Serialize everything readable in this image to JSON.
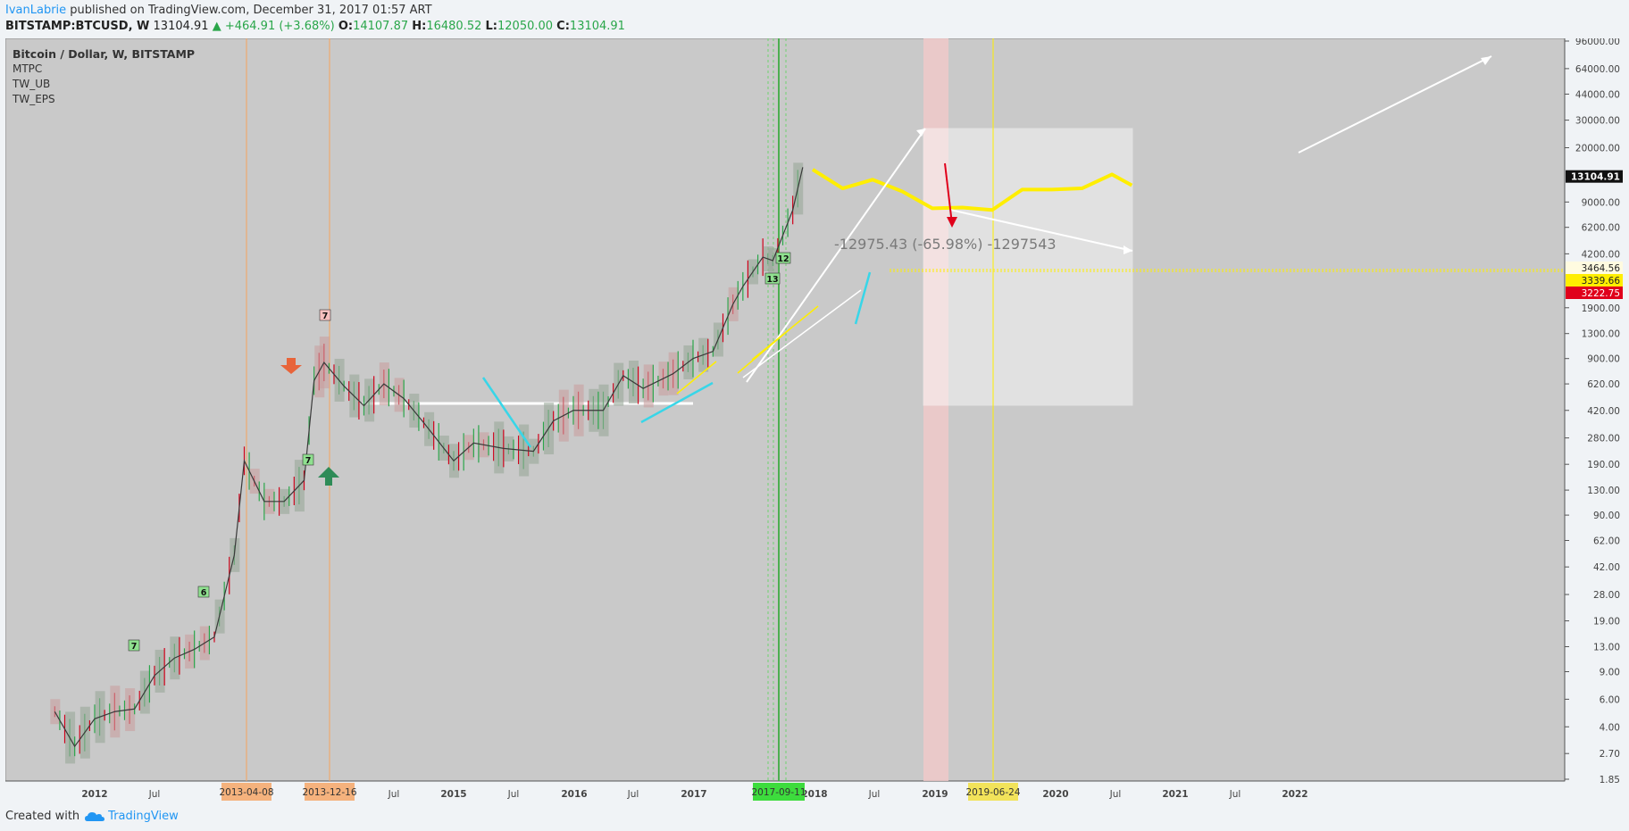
{
  "header": {
    "author": "IvanLabrie",
    "published": " published on TradingView.com, December 31, 2017 01:57 ART"
  },
  "ohlc": {
    "symbol": "BITSTAMP:BTCUSD, W",
    "last": "13104.91",
    "change": "▲ +464.91 (+3.68%)",
    "o_label": "O:",
    "o": "14107.87",
    "h_label": "H:",
    "h": "16480.52",
    "l_label": "L:",
    "l": "12050.00",
    "c_label": "C:",
    "c": "13104.91"
  },
  "legend": {
    "title": "Bitcoin / Dollar, W, BITSTAMP",
    "indicators": [
      "MTPC",
      "TW_UB",
      "TW_EPS"
    ]
  },
  "footer": {
    "created_with": "Created with",
    "brand": "TradingView"
  },
  "colors": {
    "up": "#2aa64a",
    "down": "#d0021b",
    "projection": "#ffee00",
    "background": "#c9c9c9",
    "orange": "#f5a25d",
    "green": "#4caf50",
    "highlight": "#f4c7c7"
  },
  "chart_data": {
    "type": "line",
    "title": "Bitcoin / Dollar, W, BITSTAMP",
    "scale": "log",
    "y_ticks": [
      "96000.00",
      "64000.00",
      "44000.00",
      "30000.00",
      "20000.00",
      "13104.91",
      "9000.00",
      "6200.00",
      "4200.00",
      "3464.56",
      "3339.66",
      "3222.75",
      "1900.00",
      "1300.00",
      "900.00",
      "620.00",
      "420.00",
      "280.00",
      "190.00",
      "130.00",
      "90.00",
      "62.00",
      "42.00",
      "28.00",
      "19.00",
      "13.00",
      "9.00",
      "6.00",
      "4.00",
      "2.70",
      "1.85"
    ],
    "x_ticks": [
      "2012",
      "Jul",
      "2013",
      "8",
      "Jul",
      "2015",
      "Jul",
      "2016",
      "Jul",
      "2017",
      "2018",
      "Jul",
      "2019",
      "2020",
      "Jul",
      "2021",
      "Jul",
      "2022"
    ],
    "x_tick_labels_fixed": [
      "2012",
      "Jul",
      "Jul",
      "2015",
      "Jul",
      "2016",
      "Jul",
      "2017",
      "2018",
      "Jul",
      "2019",
      "2020",
      "Jul",
      "2021",
      "Jul",
      "2022"
    ],
    "markers_on_axis": [
      "2013-04-08",
      "2013-12-16",
      "2017-09-11",
      "2019-06-24"
    ],
    "price_labels": [
      {
        "label": "13104.91",
        "value": 13104.91
      },
      {
        "label": "3464.56",
        "value": 3464.56
      },
      {
        "label": "3339.66",
        "value": 3339.66
      },
      {
        "label": "3222.75",
        "value": 3222.75
      }
    ],
    "measure_text": "-12975.43 (-65.98%) -1297543",
    "candle_labels": [
      "7",
      "6",
      "7",
      "7",
      "13",
      "12"
    ],
    "series": [
      {
        "x": [
          "2011-09",
          "2011-11",
          "2012-01",
          "2012-03",
          "2012-05",
          "2012-07",
          "2012-09",
          "2012-11",
          "2013-01",
          "2013-03",
          "2013-04",
          "2013-06",
          "2013-08",
          "2013-10",
          "2013-11",
          "2013-12",
          "2014-02",
          "2014-04",
          "2014-06",
          "2014-08",
          "2014-10",
          "2015-01",
          "2015-03",
          "2015-06",
          "2015-09",
          "2015-11",
          "2016-01",
          "2016-04",
          "2016-06",
          "2016-08",
          "2016-11",
          "2017-01",
          "2017-03",
          "2017-05",
          "2017-06",
          "2017-08",
          "2017-09",
          "2017-10",
          "2017-11",
          "2017-12"
        ],
        "values": [
          5,
          3,
          4.5,
          5,
          5.2,
          8.5,
          11,
          12.5,
          15,
          50,
          200,
          110,
          110,
          150,
          650,
          850,
          600,
          450,
          620,
          500,
          350,
          200,
          260,
          240,
          230,
          360,
          420,
          420,
          700,
          580,
          720,
          900,
          1000,
          2000,
          2600,
          4000,
          3800,
          5500,
          8000,
          15000
        ]
      },
      {
        "name": "",
        "x": [
          "2018-01",
          "2018-04",
          "2018-07",
          "2018-10",
          "2019-01",
          "2019-04",
          "2019-07",
          "2019-10",
          "2020-01",
          "2020-04",
          "2020-07",
          "2020-09"
        ],
        "values": [
          14500,
          11000,
          12500,
          10500,
          8200,
          8300,
          8000,
          10800,
          10800,
          11000,
          13500,
          11500
        ]
      }
    ]
  }
}
